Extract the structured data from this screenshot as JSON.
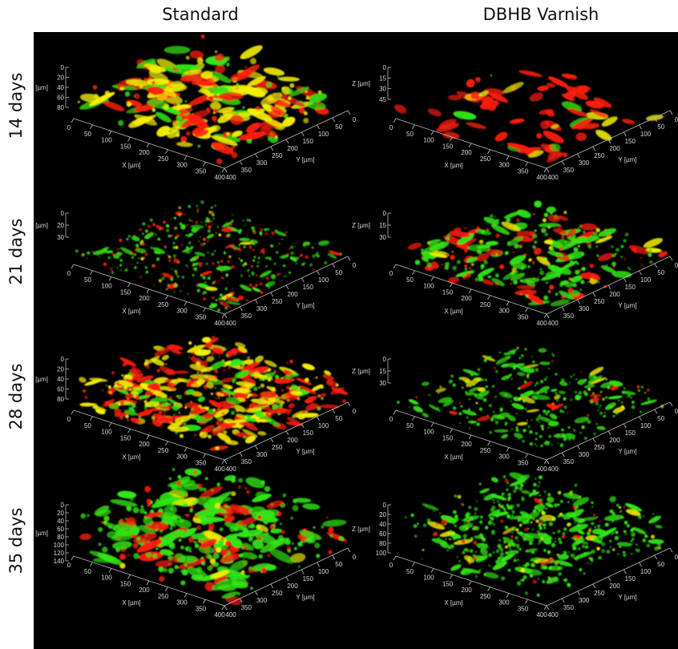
{
  "columns": [
    "Standard",
    "DBHB Varnish"
  ],
  "rows": [
    "14 days",
    "21 days",
    "28 days",
    "35 days"
  ],
  "colors": {
    "live_stain": "#32e614",
    "dead_stain": "#ff1e0a",
    "overlap": "#f5ef00",
    "background": "#000000"
  },
  "axis": {
    "x_label": "X [µm]",
    "y_label": "Y [µm]",
    "z_label": "Z [µm]",
    "xy_ticks": [
      "0",
      "50",
      "100",
      "150",
      "200",
      "250",
      "300",
      "350",
      "400"
    ]
  },
  "panels": [
    {
      "row": "14 days",
      "column": "Standard",
      "z_ticks": [
        "0",
        "20",
        "40",
        "60",
        "80"
      ],
      "appearance": "dense yellow-red biofilm with green"
    },
    {
      "row": "14 days",
      "column": "DBHB Varnish",
      "z_ticks": [
        "0",
        "15",
        "30",
        "45"
      ],
      "appearance": "sparse red rods"
    },
    {
      "row": "21 days",
      "column": "Standard",
      "z_ticks": [
        "0",
        "20",
        "30"
      ],
      "appearance": "green and red speckled"
    },
    {
      "row": "21 days",
      "column": "DBHB Varnish",
      "z_ticks": [
        "0",
        "15",
        "30"
      ],
      "appearance": "red clusters on green"
    },
    {
      "row": "28 days",
      "column": "Standard",
      "z_ticks": [
        "0",
        "20",
        "40",
        "60",
        "80"
      ],
      "appearance": "dense orange-red slab"
    },
    {
      "row": "28 days",
      "column": "DBHB Varnish",
      "z_ticks": [
        "0",
        "15",
        "30"
      ],
      "appearance": "sparse green with yellow"
    },
    {
      "row": "35 days",
      "column": "Standard",
      "z_ticks": [
        "0",
        "20",
        "40",
        "60",
        "80",
        "100",
        "120",
        "140"
      ],
      "appearance": "green mass with red bands"
    },
    {
      "row": "35 days",
      "column": "DBHB Varnish",
      "z_ticks": [
        "0",
        "20",
        "40",
        "60",
        "80",
        "100"
      ],
      "appearance": "dense green with yellow specks"
    }
  ]
}
